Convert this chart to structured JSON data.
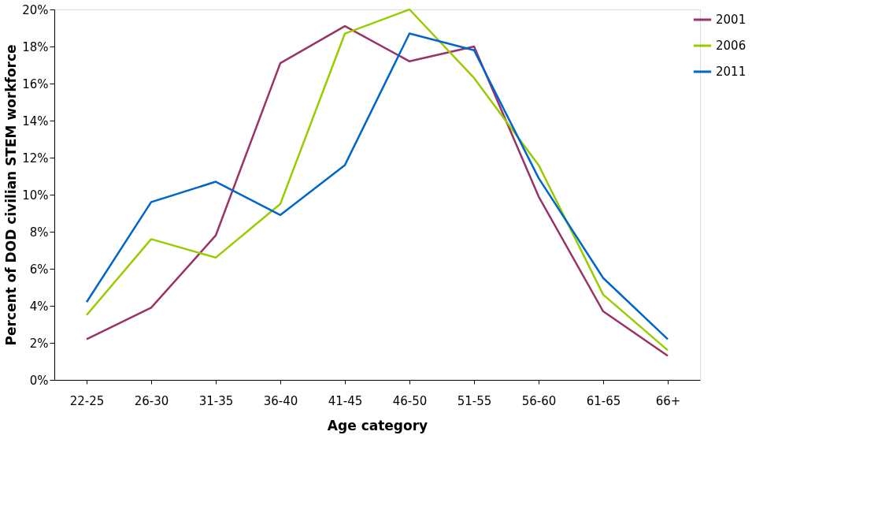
{
  "chart_data": {
    "type": "line",
    "xlabel": "Age category",
    "ylabel": "Percent of DOD civilian STEM workforce",
    "categories": [
      "22-25",
      "26-30",
      "31-35",
      "36-40",
      "41-45",
      "46-50",
      "51-55",
      "56-60",
      "61-65",
      "66+"
    ],
    "series": [
      {
        "name": "2001",
        "color": "#993366",
        "values": [
          2.2,
          3.9,
          7.8,
          17.1,
          19.1,
          17.2,
          18.0,
          9.9,
          3.7,
          1.3
        ]
      },
      {
        "name": "2006",
        "color": "#99cc00",
        "values": [
          3.5,
          7.6,
          6.6,
          9.5,
          18.7,
          20.0,
          16.3,
          11.6,
          4.6,
          1.6
        ]
      },
      {
        "name": "2011",
        "color": "#0066cc",
        "values": [
          4.2,
          9.6,
          10.7,
          8.9,
          11.6,
          18.7,
          17.8,
          10.9,
          5.5,
          2.2
        ]
      }
    ],
    "ylim": [
      0,
      20
    ],
    "yticks": [
      {
        "value": 0,
        "label": "0%"
      },
      {
        "value": 2,
        "label": "2%"
      },
      {
        "value": 4,
        "label": "4%"
      },
      {
        "value": 6,
        "label": "6%"
      },
      {
        "value": 8,
        "label": "8%"
      },
      {
        "value": 10,
        "label": "10%"
      },
      {
        "value": 12,
        "label": "12%"
      },
      {
        "value": 14,
        "label": "14%"
      },
      {
        "value": 16,
        "label": "16%"
      },
      {
        "value": 18,
        "label": "18%"
      },
      {
        "value": 20,
        "label": "20%"
      }
    ],
    "grid": false,
    "legend": "right",
    "marker": "none",
    "line_style": "solid"
  }
}
